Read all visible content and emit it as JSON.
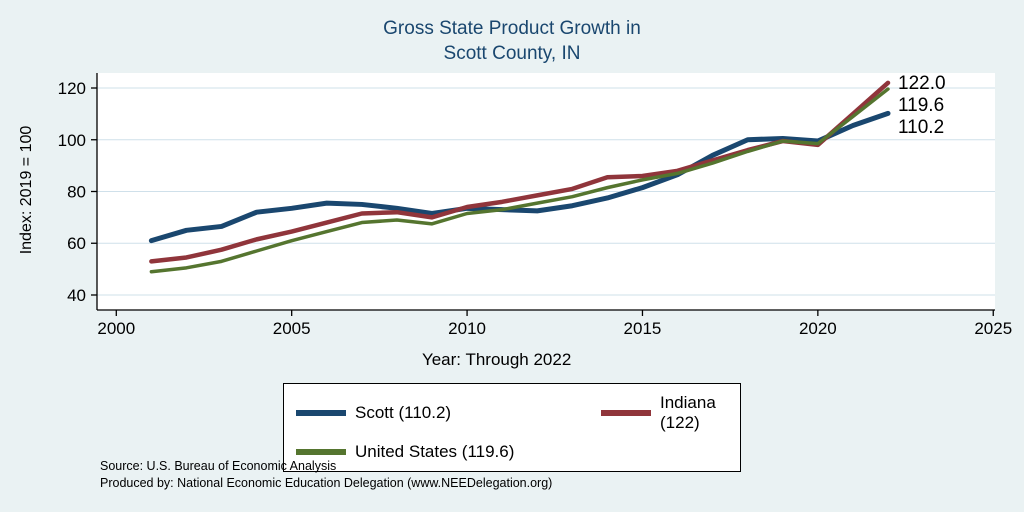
{
  "colors": {
    "background": "#eaf2f3",
    "title": "#1a476f",
    "grid": "#cfe0ea",
    "axis": "#000000"
  },
  "footer": {
    "source": "Source: U.S. Bureau of Economic Analysis",
    "produced_by": "Produced by: National Economic Education Delegation (www.NEEDelegation.org)"
  },
  "chart_data": {
    "type": "line",
    "title_line1": "Gross State Product Growth in",
    "title_line2": "Scott County, IN",
    "xlabel": "Year: Through 2022",
    "ylabel": "Index: 2019 = 100",
    "xlim": [
      1999.45,
      2025.05
    ],
    "ylim": [
      34.2,
      125.8
    ],
    "x_ticks": [
      2000,
      2005,
      2010,
      2015,
      2020,
      2025
    ],
    "y_ticks": [
      40,
      60,
      80,
      100,
      120
    ],
    "grid": true,
    "legend_position": "bottom-center",
    "years": [
      2001,
      2002,
      2003,
      2004,
      2005,
      2006,
      2007,
      2008,
      2009,
      2010,
      2011,
      2012,
      2013,
      2014,
      2015,
      2016,
      2017,
      2018,
      2019,
      2020,
      2021,
      2022
    ],
    "series": [
      {
        "name": "Scott",
        "legend_label": "Scott  (110.2)",
        "end_label": "110.2",
        "color": "#1a476f",
        "width": 5,
        "values": [
          61,
          65,
          66.5,
          72,
          73.5,
          75.5,
          75,
          73.5,
          71.5,
          73.5,
          73,
          72.5,
          74.5,
          77.5,
          81.5,
          86.5,
          94,
          100,
          100.5,
          99.5,
          105.5,
          110.2
        ]
      },
      {
        "name": "Indiana",
        "legend_label": "Indiana (122)",
        "end_label": "122.0",
        "color": "#90353b",
        "width": 4.5,
        "values": [
          53,
          54.5,
          57.5,
          61.5,
          64.5,
          68,
          71.5,
          72,
          70,
          74,
          76,
          78.5,
          81,
          85.5,
          86,
          88,
          92,
          96,
          99.5,
          98,
          110,
          122
        ]
      },
      {
        "name": "United States",
        "legend_label": "United States (119.6)",
        "end_label": "119.6",
        "color": "#55752f",
        "width": 3.5,
        "values": [
          49,
          50.5,
          53,
          57,
          61,
          64.5,
          68,
          69,
          67.5,
          71.5,
          73,
          75.5,
          78,
          81.5,
          84.5,
          87,
          91,
          95.5,
          99.5,
          98.5,
          109,
          119.6
        ]
      }
    ]
  }
}
